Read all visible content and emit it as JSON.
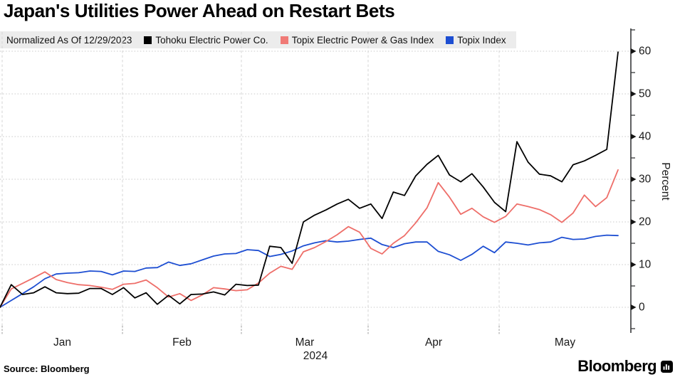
{
  "title": "Japan's Utilities Power Ahead on Restart Bets",
  "legend": {
    "note": "Normalized As Of 12/29/2023",
    "items": [
      {
        "label": "Tohoku Electric Power Co.",
        "color": "#000000"
      },
      {
        "label": "Topix Electric Power & Gas Index",
        "color": "#f07a76"
      },
      {
        "label": "Topix Index",
        "color": "#1d4ed2"
      }
    ]
  },
  "source": "Source: Bloomberg",
  "brand": "Bloomberg",
  "icons": {
    "bloomberg_terminal_icon": "bloomberg-terminal-icon"
  },
  "chart_data": {
    "type": "line",
    "title": "Japan's Utilities Power Ahead on Restart Bets",
    "subtitle_note": "Normalized As Of 12/29/2023",
    "xlabel": "",
    "ylabel": "Percent",
    "ylim": [
      -6,
      64.5
    ],
    "grid": true,
    "legend_position": "top",
    "y_ticks_major": [
      0,
      10,
      20,
      30,
      40,
      50,
      60
    ],
    "y_ticks_minor": [
      -5,
      5,
      15,
      25,
      35,
      45,
      55,
      65
    ],
    "x_axis": {
      "month_labels": [
        "Jan",
        "Feb",
        "Mar",
        "Apr",
        "May"
      ],
      "year_label": "2024",
      "boundaries_idx": [
        0.19,
        10.9,
        21.48,
        32.76,
        44.42,
        56.14
      ]
    },
    "x_unit": "trading sessions since 12/29/2023 (index 0 = 12/29/2023, ~3 days per step, through mid-May 2024)",
    "series": [
      {
        "name": "Tohoku Electric Power Co.",
        "color": "#000000",
        "values": [
          0,
          5.3,
          3.0,
          3.4,
          4.8,
          3.4,
          3.2,
          3.3,
          4.4,
          4.4,
          3.0,
          4.6,
          2.2,
          3.4,
          0.7,
          2.8,
          0.8,
          3.0,
          3.1,
          3.6,
          2.9,
          5.4,
          5.1,
          5.2,
          14.3,
          14.0,
          10.3,
          20.0,
          21.6,
          22.8,
          24.2,
          25.3,
          23.2,
          24.2,
          20.8,
          27.0,
          26.2,
          30.8,
          33.5,
          35.6,
          31.0,
          29.4,
          31.3,
          28.2,
          24.6,
          22.4,
          38.8,
          34.0,
          31.2,
          30.8,
          29.4,
          33.4,
          34.3,
          35.6,
          37.0,
          59.8
        ]
      },
      {
        "name": "Topix Electric Power & Gas Index",
        "color": "#ee6e69",
        "values": [
          0,
          4.3,
          5.6,
          6.9,
          8.3,
          6.5,
          5.8,
          5.3,
          5.1,
          4.7,
          4.2,
          5.4,
          5.6,
          6.4,
          4.6,
          2.4,
          3.2,
          1.6,
          2.9,
          4.6,
          4.3,
          3.9,
          4.1,
          5.7,
          8.0,
          9.6,
          8.9,
          13.0,
          14.0,
          15.4,
          17.0,
          18.9,
          17.6,
          13.8,
          12.5,
          15.0,
          16.8,
          19.8,
          23.3,
          29.2,
          25.8,
          21.8,
          23.2,
          21.2,
          19.9,
          21.3,
          24.2,
          23.6,
          22.9,
          21.7,
          19.9,
          22.1,
          26.3,
          23.6,
          25.7,
          32.2
        ]
      },
      {
        "name": "Topix Index",
        "color": "#1d4ed2",
        "values": [
          0,
          1.6,
          3.2,
          4.8,
          6.7,
          7.8,
          8.0,
          8.1,
          8.5,
          8.4,
          7.6,
          8.5,
          8.4,
          9.2,
          9.3,
          10.6,
          9.8,
          10.2,
          11.1,
          12.0,
          12.5,
          12.6,
          13.5,
          13.3,
          11.9,
          12.4,
          13.2,
          14.4,
          15.1,
          15.6,
          15.3,
          15.5,
          15.9,
          16.2,
          14.7,
          14.0,
          14.9,
          15.3,
          15.3,
          13.1,
          12.3,
          11.0,
          12.4,
          14.3,
          12.8,
          15.3,
          15.0,
          14.6,
          15.1,
          15.3,
          16.4,
          15.9,
          16.0,
          16.6,
          16.9,
          16.8
        ]
      }
    ]
  }
}
